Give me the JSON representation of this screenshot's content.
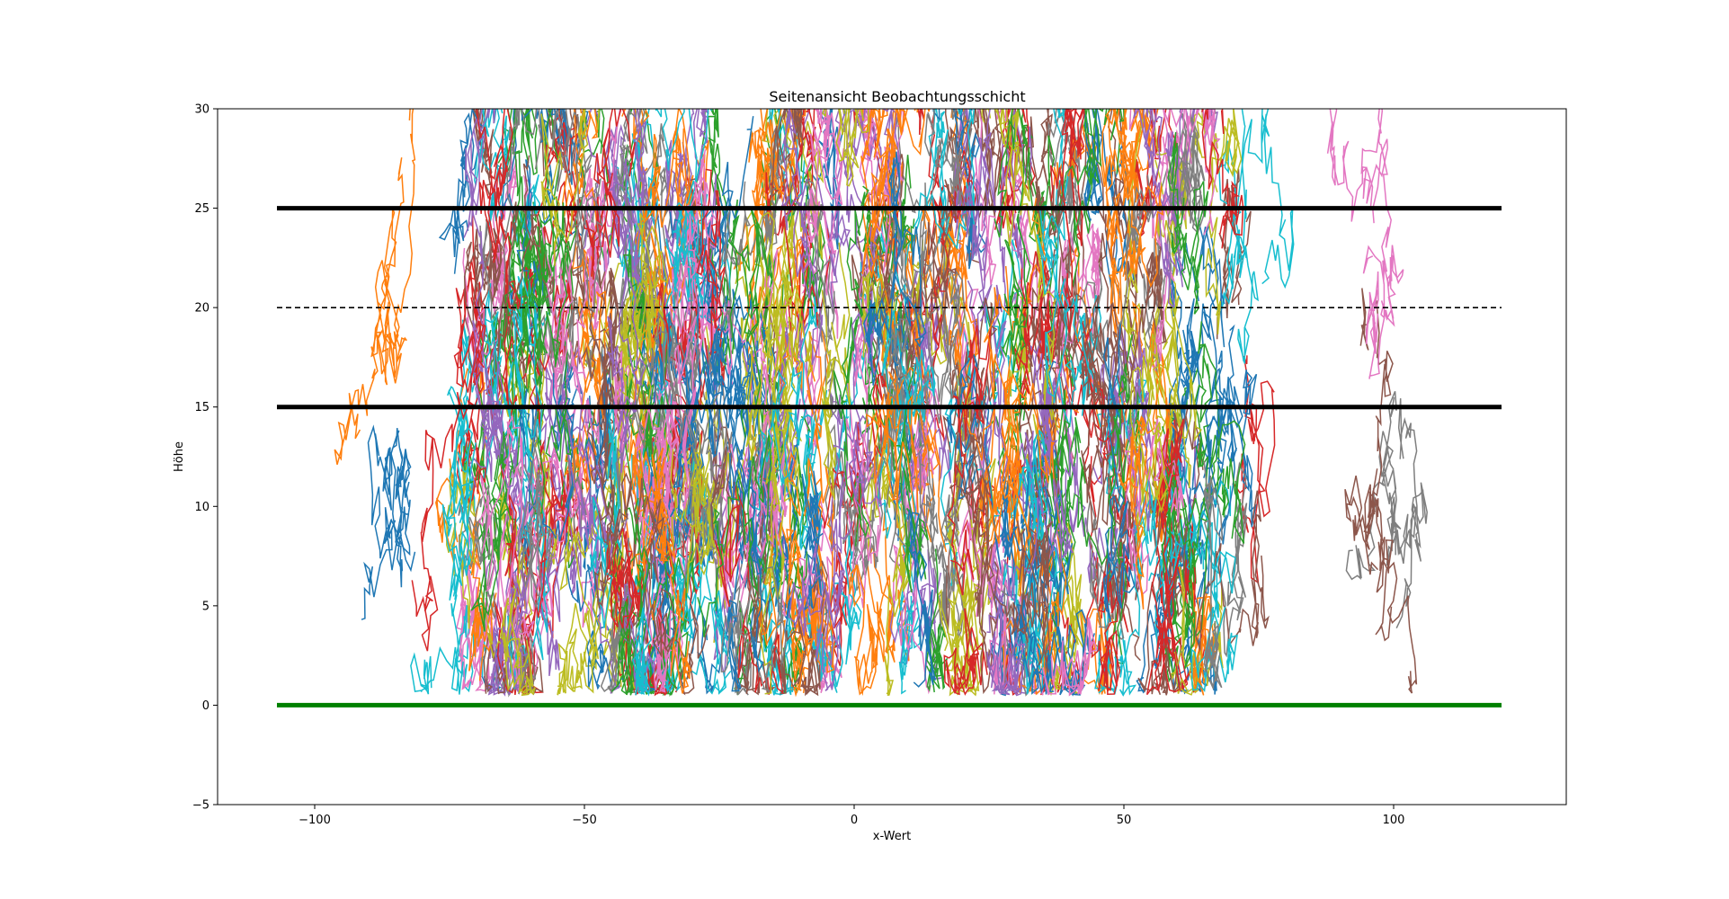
{
  "chart_data": {
    "type": "line",
    "title": "Seitenansicht Beobachtungsschicht",
    "xlabel": "x-Wert",
    "ylabel": "Höhe",
    "xlim": [
      -118,
      132
    ],
    "ylim": [
      -5,
      30
    ],
    "xticks": [
      -100,
      -50,
      0,
      50,
      100
    ],
    "xtick_labels": [
      "−100",
      "−50",
      "0",
      "50",
      "100"
    ],
    "yticks": [
      -5,
      0,
      5,
      10,
      15,
      20,
      25,
      30
    ],
    "ytick_labels": [
      "−5",
      "0",
      "5",
      "10",
      "15",
      "20",
      "25",
      "30"
    ],
    "grid": false,
    "legend": "none",
    "reference_lines": [
      {
        "y": 25,
        "x_range": [
          -107,
          120
        ],
        "color": "#000000",
        "style": "solid",
        "weight": "thick"
      },
      {
        "y": 20,
        "x_range": [
          -107,
          120
        ],
        "color": "#000000",
        "style": "dashed",
        "weight": "thin"
      },
      {
        "y": 15,
        "x_range": [
          -107,
          120
        ],
        "color": "#000000",
        "style": "solid",
        "weight": "thick"
      },
      {
        "y": 0,
        "x_range": [
          -107,
          120
        ],
        "color": "#008000",
        "style": "solid",
        "weight": "thick"
      }
    ],
    "trajectories": {
      "description_count": 520,
      "palette": [
        "#1f77b4",
        "#ff7f0e",
        "#2ca02c",
        "#d62728",
        "#9467bd",
        "#8c564b",
        "#e377c2",
        "#7f7f7f",
        "#bcbd22",
        "#17becf"
      ],
      "x_extent": [
        -94,
        110
      ],
      "y_floor": 0.5,
      "y_ceiling": 30,
      "outliers": [
        {
          "x": 100,
          "y": 14,
          "color": "#7f7f7f"
        },
        {
          "x": 98,
          "y": 8,
          "color": "#8c564b"
        },
        {
          "x": 95,
          "y": 25,
          "color": "#e377c2"
        },
        {
          "x": -84,
          "y": 9,
          "color": "#1f77b4"
        },
        {
          "x": -86,
          "y": 20,
          "color": "#ff7f0e"
        }
      ]
    }
  }
}
